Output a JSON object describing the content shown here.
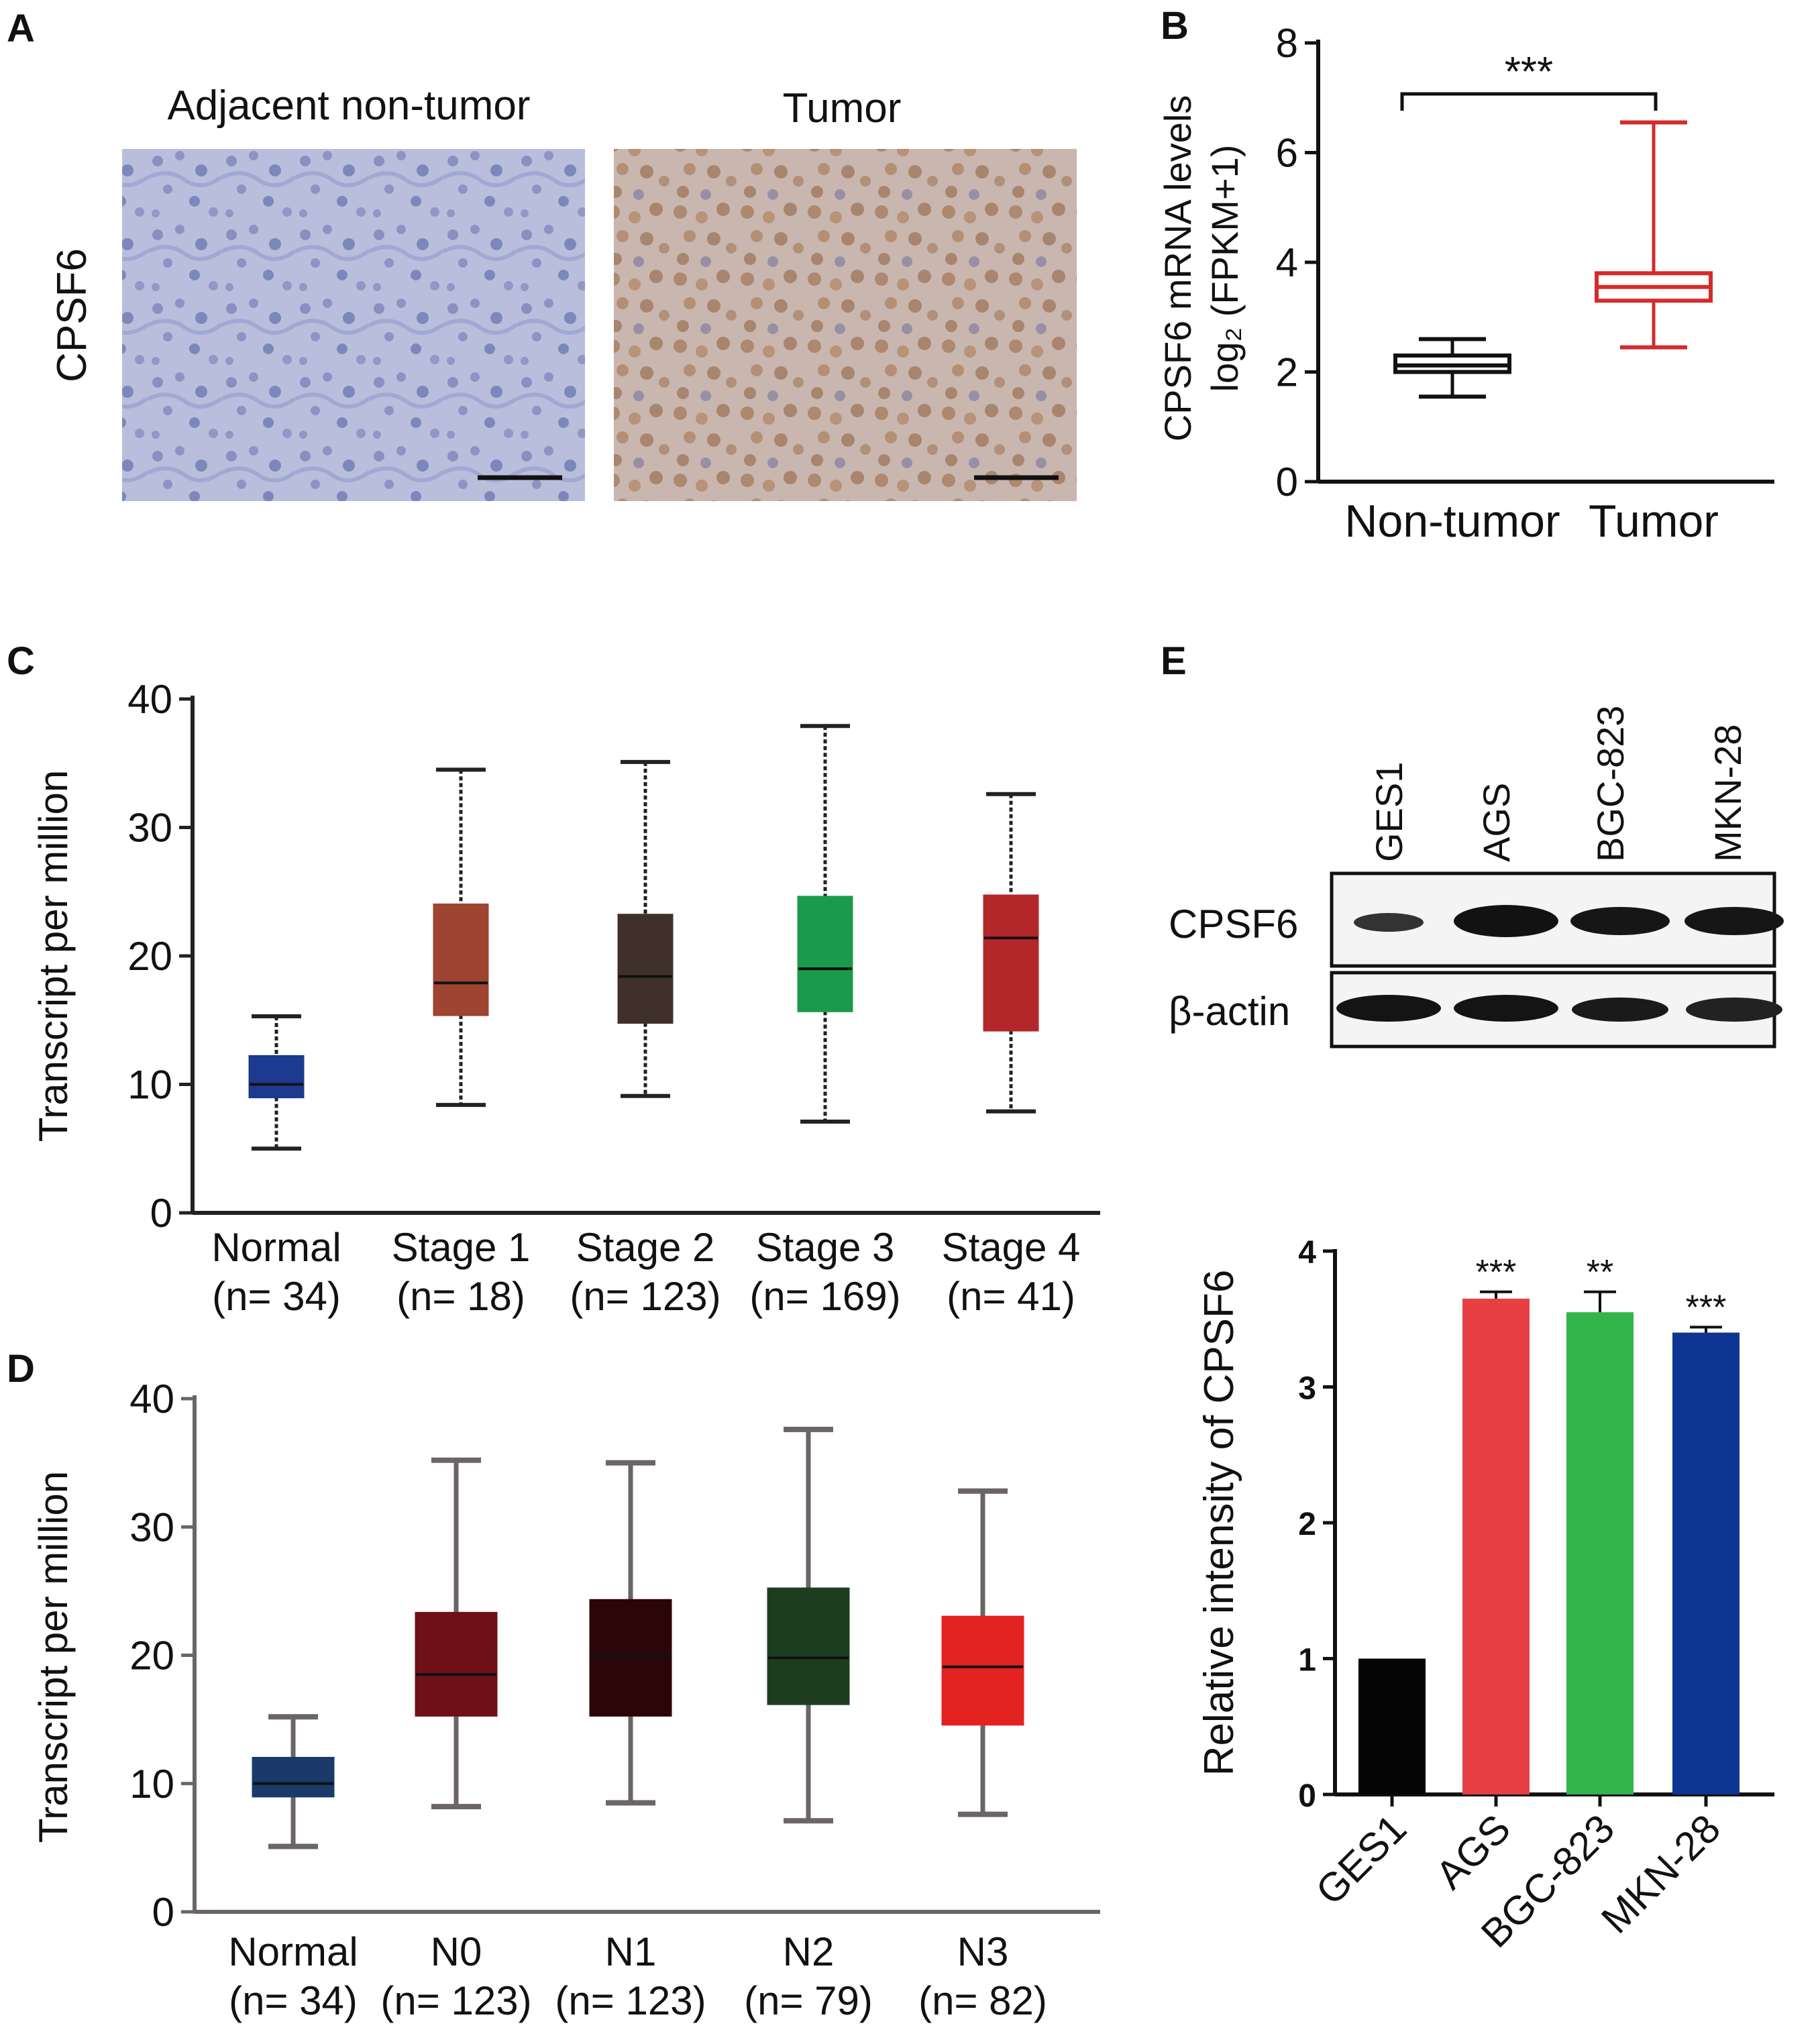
{
  "panel_labels": {
    "A": "A",
    "B": "B",
    "C": "C",
    "D": "D",
    "E": "E"
  },
  "colors": {
    "micro_normal": "#b9bedd",
    "micro_tumor": "#c9b6ae",
    "B_nontumor": "#111111",
    "B_tumor": "#d62a2a",
    "C_normal": "#1c3a8f",
    "C_stage1": "#9e4430",
    "C_stage2": "#3f302c",
    "C_stage3": "#1c9a4c",
    "C_stage4": "#b3262a",
    "D_normal": "#1a3b6a",
    "D_n0": "#6e1016",
    "D_n1": "#2d0508",
    "D_n2": "#1c3e1f",
    "D_n3": "#e2231f",
    "E_ges1": "#050505",
    "E_ags": "#e84042",
    "E_bgc": "#33b44a",
    "E_mkn": "#0c3691"
  },
  "panel_a": {
    "row_label": "CPSF6",
    "left_title": "Adjacent non-tumor",
    "right_title": "Tumor"
  },
  "panel_e_blot": {
    "lanes": [
      "GES1",
      "AGS",
      "BGC-823",
      "MKN-28"
    ],
    "rows": [
      "CPSF6",
      "β-actin"
    ]
  },
  "chart_data": [
    {
      "id": "B",
      "type": "box",
      "ylabel_line1": "CPSF6 mRNA levels",
      "ylabel_line2": "log₂ (FPKM+1)",
      "ylim": [
        0,
        8
      ],
      "yticks": [
        0,
        2,
        4,
        6,
        8
      ],
      "categories": [
        "Non-tumor",
        "Tumor"
      ],
      "boxes": [
        {
          "label": "Non-tumor",
          "min": 1.55,
          "q1": 2.0,
          "median": 2.12,
          "q3": 2.3,
          "max": 2.6
        },
        {
          "label": "Tumor",
          "min": 2.45,
          "q1": 3.3,
          "median": 3.55,
          "q3": 3.8,
          "max": 6.55
        }
      ],
      "significance": "***"
    },
    {
      "id": "C",
      "type": "box",
      "ylabel": "Transcript per million",
      "ylim": [
        0,
        40
      ],
      "yticks": [
        0,
        10,
        20,
        30,
        40
      ],
      "categories": [
        "Normal",
        "Stage 1",
        "Stage 2",
        "Stage 3",
        "Stage 4"
      ],
      "counts": [
        "(n= 34)",
        "(n= 18)",
        "(n= 123)",
        "(n= 169)",
        "(n= 41)"
      ],
      "boxes": [
        {
          "label": "Normal",
          "min": 5.0,
          "q1": 9.0,
          "median": 10.0,
          "q3": 12.2,
          "max": 15.3
        },
        {
          "label": "Stage 1",
          "min": 8.4,
          "q1": 15.4,
          "median": 17.9,
          "q3": 24.0,
          "max": 34.5
        },
        {
          "label": "Stage 2",
          "min": 9.1,
          "q1": 14.8,
          "median": 18.4,
          "q3": 23.2,
          "max": 35.1
        },
        {
          "label": "Stage 3",
          "min": 7.1,
          "q1": 15.7,
          "median": 19.0,
          "q3": 24.6,
          "max": 37.9
        },
        {
          "label": "Stage 4",
          "min": 7.9,
          "q1": 14.2,
          "median": 21.4,
          "q3": 24.7,
          "max": 32.6
        }
      ]
    },
    {
      "id": "D",
      "type": "box",
      "ylabel": "Transcript per million",
      "ylim": [
        0,
        40
      ],
      "yticks": [
        0,
        10,
        20,
        30,
        40
      ],
      "categories": [
        "Normal",
        "N0",
        "N1",
        "N2",
        "N3"
      ],
      "counts": [
        "(n= 34)",
        "(n= 123)",
        "(n= 123)",
        "(n= 79)",
        "(n= 82)"
      ],
      "boxes": [
        {
          "label": "Normal",
          "min": 5.1,
          "q1": 9.0,
          "median": 10.0,
          "q3": 12.0,
          "max": 15.2
        },
        {
          "label": "N0",
          "min": 8.2,
          "q1": 15.3,
          "median": 18.5,
          "q3": 23.3,
          "max": 35.2
        },
        {
          "label": "N1",
          "min": 8.5,
          "q1": 15.3,
          "median": 20.0,
          "q3": 24.3,
          "max": 35.0
        },
        {
          "label": "N2",
          "min": 7.1,
          "q1": 16.2,
          "median": 19.8,
          "q3": 25.2,
          "max": 37.6
        },
        {
          "label": "N3",
          "min": 7.6,
          "q1": 14.6,
          "median": 19.1,
          "q3": 23.0,
          "max": 32.8
        }
      ]
    },
    {
      "id": "E",
      "type": "bar",
      "ylabel": "Relative intensity of CPSF6",
      "ylim": [
        0,
        4
      ],
      "yticks": [
        0,
        1,
        2,
        3,
        4
      ],
      "categories": [
        "GES1",
        "AGS",
        "BGC-823",
        "MKN-28"
      ],
      "values": [
        1.0,
        3.65,
        3.55,
        3.4
      ],
      "errors": [
        0,
        0.05,
        0.15,
        0.04
      ],
      "significance": [
        "",
        "***",
        "**",
        "***"
      ]
    }
  ]
}
